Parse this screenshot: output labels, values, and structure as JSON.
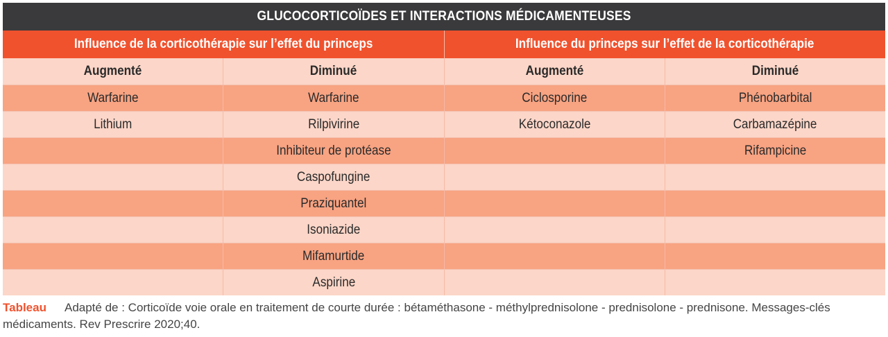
{
  "title": "GLUCOCORTICOÏDES ET INTERACTIONS MÉDICAMENTEUSES",
  "groups": [
    "Influence de la corticothérapie sur l’effet du princeps",
    "Influence du princeps sur l’effet de la corticothérapie"
  ],
  "columns": [
    "Augmenté",
    "Diminué",
    "Augmenté",
    "Diminué"
  ],
  "rows": [
    [
      "Warfarine",
      "Warfarine",
      "Ciclosporine",
      "Phénobarbital"
    ],
    [
      "Lithium",
      "Rilpivirine",
      "Kétoconazole",
      "Carbamazépine"
    ],
    [
      "",
      "Inhibiteur de protéase",
      "",
      "Rifampicine"
    ],
    [
      "",
      "Caspofungine",
      "",
      ""
    ],
    [
      "",
      "Praziquantel",
      "",
      ""
    ],
    [
      "",
      "Isoniazide",
      "",
      ""
    ],
    [
      "",
      "Mifamurtide",
      "",
      ""
    ],
    [
      "",
      "Aspirine",
      "",
      ""
    ]
  ],
  "caption": {
    "label": "Tableau",
    "text": "Adapté de : Corticoïde voie orale en traitement de courte durée : bétaméthasone - méthylprednisolone - prednisolone - prednisone. Messages-clés médicaments. Rev Prescrire 2020;40."
  }
}
